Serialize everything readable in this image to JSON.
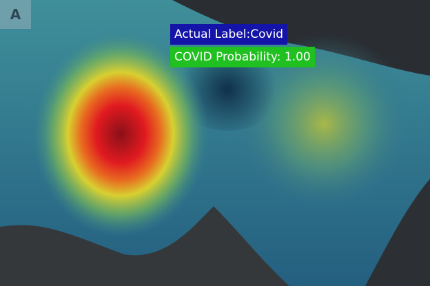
{
  "panel_label": "A",
  "actual_label": "Actual Label:Covid",
  "probability_label": "COVID Probability: 1.00"
}
